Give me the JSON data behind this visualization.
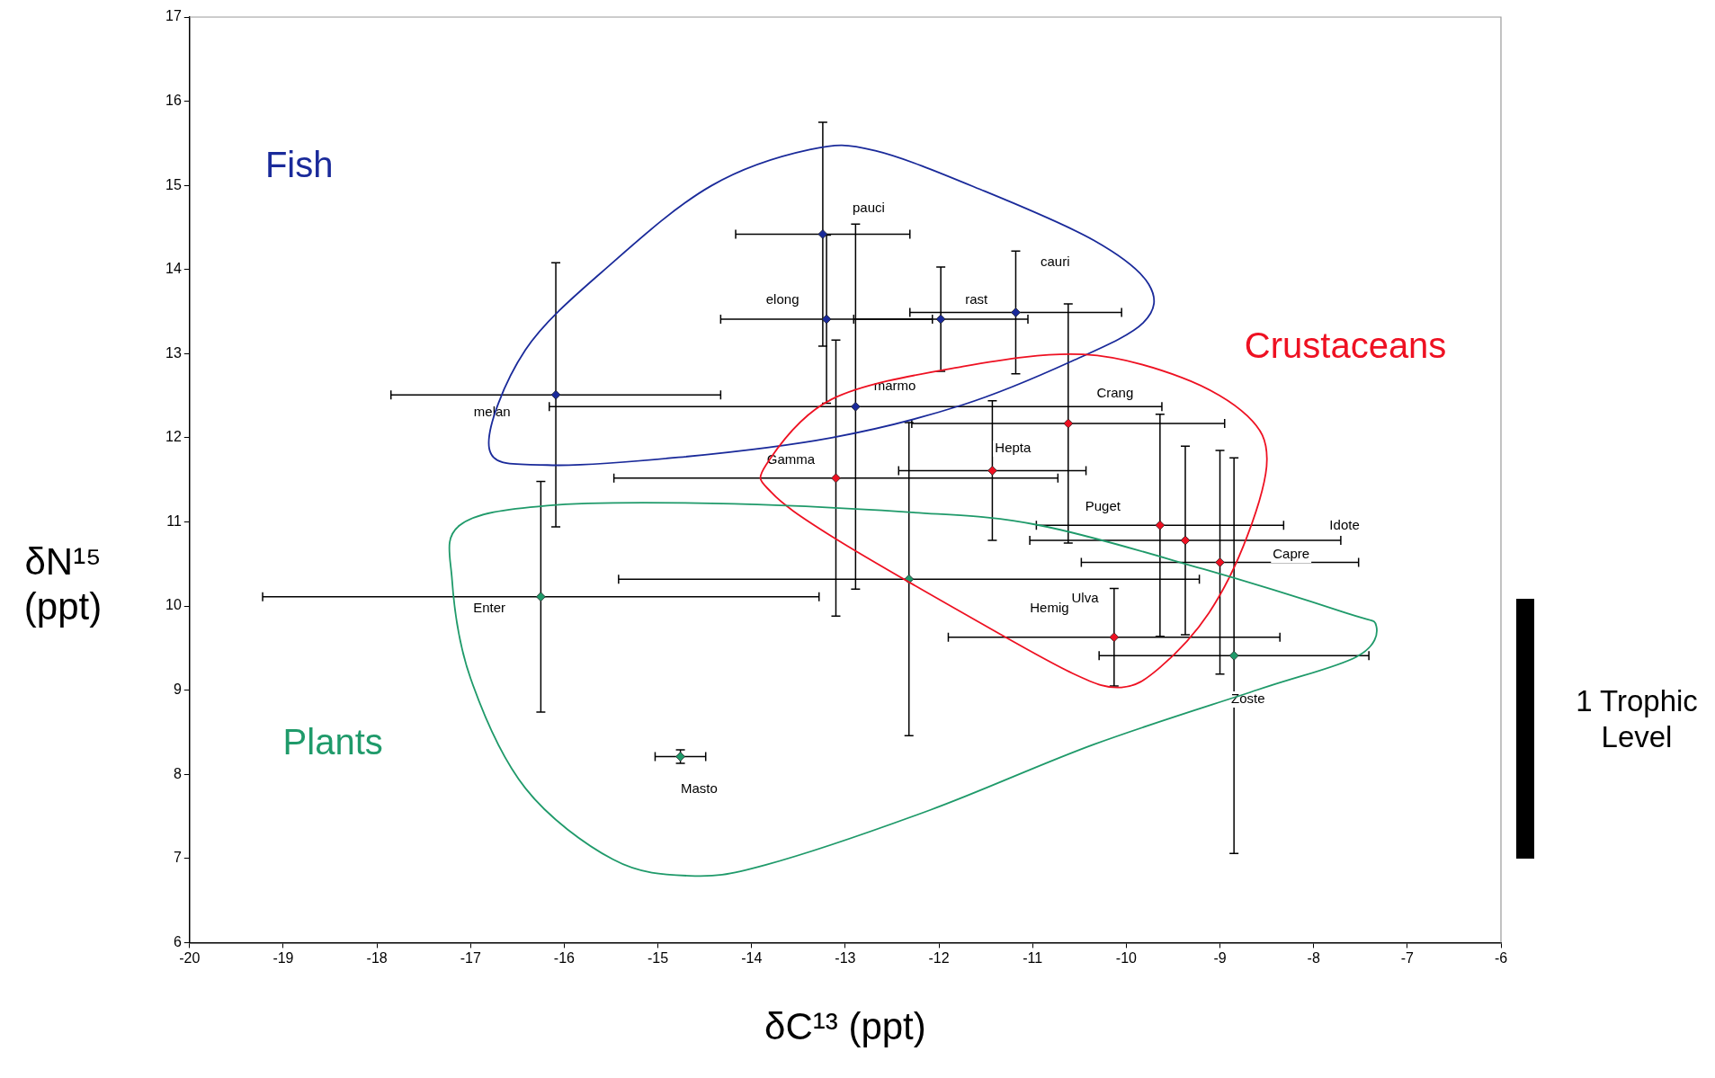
{
  "chart_data": {
    "type": "scatter",
    "xlabel": "δC¹³ (ppt)",
    "ylabel": "δN¹⁵ (ppt)",
    "xlim": [
      -20,
      -6
    ],
    "xticks": [
      -20,
      -19,
      -18,
      -17,
      -16,
      -15,
      -14,
      -13,
      -12,
      -11,
      -10,
      -9,
      -8,
      -7,
      -6
    ],
    "ylim": [
      6,
      17
    ],
    "yticks": [
      6,
      7,
      8,
      9,
      10,
      11,
      12,
      13,
      14,
      15,
      16,
      17
    ],
    "grid": false,
    "legend": false,
    "marker": "diamond",
    "series": [
      {
        "name": "Fish",
        "color": "#1a2a9a",
        "x": [
          -13.24,
          -13.2,
          -11.98,
          -11.18,
          -12.89,
          -16.09
        ],
        "values": [
          14.42,
          13.41,
          13.41,
          13.49,
          12.37,
          12.51
        ],
        "errors": [
          1.33,
          1.0,
          0.62,
          0.73,
          2.17,
          1.57
        ],
        "xerrors": [
          0.93,
          1.13,
          0.93,
          1.13,
          3.27,
          1.76
        ]
      },
      {
        "name": "Crustaceans",
        "color": "#ee1122",
        "x": [
          -10.62,
          -11.43,
          -13.1,
          -9.64,
          -9.37,
          -9.0,
          -10.13
        ],
        "values": [
          12.17,
          11.61,
          11.52,
          10.96,
          10.78,
          10.52,
          9.63
        ],
        "errors": [
          1.42,
          0.83,
          1.64,
          1.32,
          1.12,
          1.33,
          0.58
        ],
        "xerrors": [
          1.67,
          1.0,
          2.37,
          1.32,
          1.66,
          1.48,
          1.77
        ]
      },
      {
        "name": "Plants",
        "color": "#1f9a6a",
        "x": [
          -16.25,
          -12.32,
          -8.85,
          -14.76
        ],
        "values": [
          10.11,
          10.32,
          9.41,
          8.21
        ],
        "errors": [
          1.37,
          1.86,
          2.35,
          0.08
        ],
        "xerrors": [
          2.97,
          3.1,
          1.44,
          0.27
        ]
      }
    ],
    "annotations": [
      "pauci",
      "elong",
      "rast",
      "cauri",
      "marmo",
      "melan",
      "Crang",
      "Hepta",
      "Gamma",
      "Puget",
      "Idote",
      "Capre",
      "Hemig",
      "Ulva",
      "Enter",
      "Zoste",
      "Masto",
      "1 Trophic Level"
    ]
  }
}
